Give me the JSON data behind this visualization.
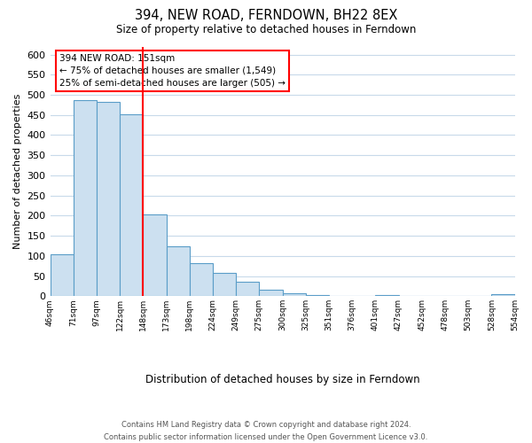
{
  "title": "394, NEW ROAD, FERNDOWN, BH22 8EX",
  "subtitle": "Size of property relative to detached houses in Ferndown",
  "xlabel": "Distribution of detached houses by size in Ferndown",
  "ylabel": "Number of detached properties",
  "bar_values": [
    105,
    487,
    483,
    452,
    202,
    123,
    82,
    57,
    35,
    16,
    8,
    2,
    0,
    0,
    3,
    0,
    0,
    0,
    0,
    5
  ],
  "bin_labels": [
    "46sqm",
    "71sqm",
    "97sqm",
    "122sqm",
    "148sqm",
    "173sqm",
    "198sqm",
    "224sqm",
    "249sqm",
    "275sqm",
    "300sqm",
    "325sqm",
    "351sqm",
    "376sqm",
    "401sqm",
    "427sqm",
    "452sqm",
    "478sqm",
    "503sqm",
    "528sqm",
    "554sqm"
  ],
  "bar_color": "#cce0f0",
  "bar_edge_color": "#5a9dc8",
  "redline_index": 4,
  "ylim": [
    0,
    620
  ],
  "yticks": [
    0,
    50,
    100,
    150,
    200,
    250,
    300,
    350,
    400,
    450,
    500,
    550,
    600
  ],
  "annotation_title": "394 NEW ROAD: 151sqm",
  "annotation_line1": "← 75% of detached houses are smaller (1,549)",
  "annotation_line2": "25% of semi-detached houses are larger (505) →",
  "footer_line1": "Contains HM Land Registry data © Crown copyright and database right 2024.",
  "footer_line2": "Contains public sector information licensed under the Open Government Licence v3.0.",
  "background_color": "#ffffff",
  "grid_color": "#c8daea"
}
